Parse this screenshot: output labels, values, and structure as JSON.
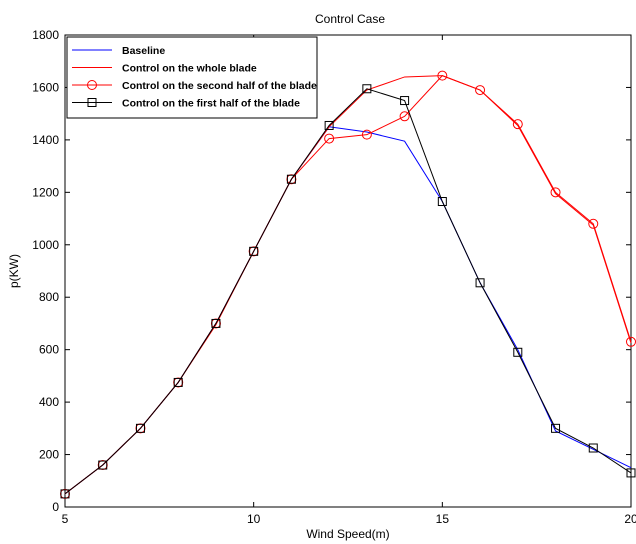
{
  "chart_data": {
    "type": "line",
    "title": "Control Case",
    "xlabel": "Wind Speed(m)",
    "ylabel": "p(KW)",
    "xlim": [
      5,
      20
    ],
    "ylim": [
      0,
      1800
    ],
    "xticks": [
      5,
      10,
      15,
      20
    ],
    "yticks": [
      0,
      200,
      400,
      600,
      800,
      1000,
      1200,
      1400,
      1600,
      1800
    ],
    "grid": false,
    "legend_position": "top-left",
    "series": [
      {
        "name": "Baseline",
        "color": "#0000ff",
        "marker": "none",
        "x": [
          5,
          6,
          7,
          8,
          9,
          10,
          11,
          12,
          13,
          14,
          15,
          16,
          17,
          18,
          19,
          20
        ],
        "y": [
          50,
          160,
          300,
          475,
          700,
          975,
          1250,
          1450,
          1430,
          1395,
          1165,
          855,
          600,
          290,
          220,
          150
        ]
      },
      {
        "name": "Control on the whole blade",
        "color": "#ff0000",
        "marker": "none",
        "x": [
          5,
          6,
          7,
          8,
          9,
          10,
          11,
          12,
          13,
          14,
          15,
          16,
          17,
          18,
          19,
          20
        ],
        "y": [
          50,
          160,
          300,
          475,
          695,
          975,
          1250,
          1450,
          1590,
          1640,
          1645,
          1590,
          1455,
          1195,
          1075,
          625
        ]
      },
      {
        "name": "Control on the second half of the blade",
        "color": "#ff0000",
        "marker": "circle",
        "x": [
          5,
          6,
          7,
          8,
          9,
          10,
          11,
          12,
          13,
          14,
          15,
          16,
          17,
          18,
          19,
          20
        ],
        "y": [
          50,
          160,
          300,
          475,
          700,
          975,
          1250,
          1405,
          1420,
          1490,
          1645,
          1590,
          1460,
          1200,
          1080,
          630
        ]
      },
      {
        "name": "Control on the first half of the blade",
        "color": "#000000",
        "marker": "square",
        "x": [
          5,
          6,
          7,
          8,
          9,
          10,
          11,
          12,
          13,
          14,
          15,
          16,
          17,
          18,
          19,
          20
        ],
        "y": [
          50,
          160,
          300,
          475,
          700,
          975,
          1250,
          1455,
          1595,
          1550,
          1165,
          855,
          590,
          300,
          225,
          130
        ]
      }
    ]
  }
}
